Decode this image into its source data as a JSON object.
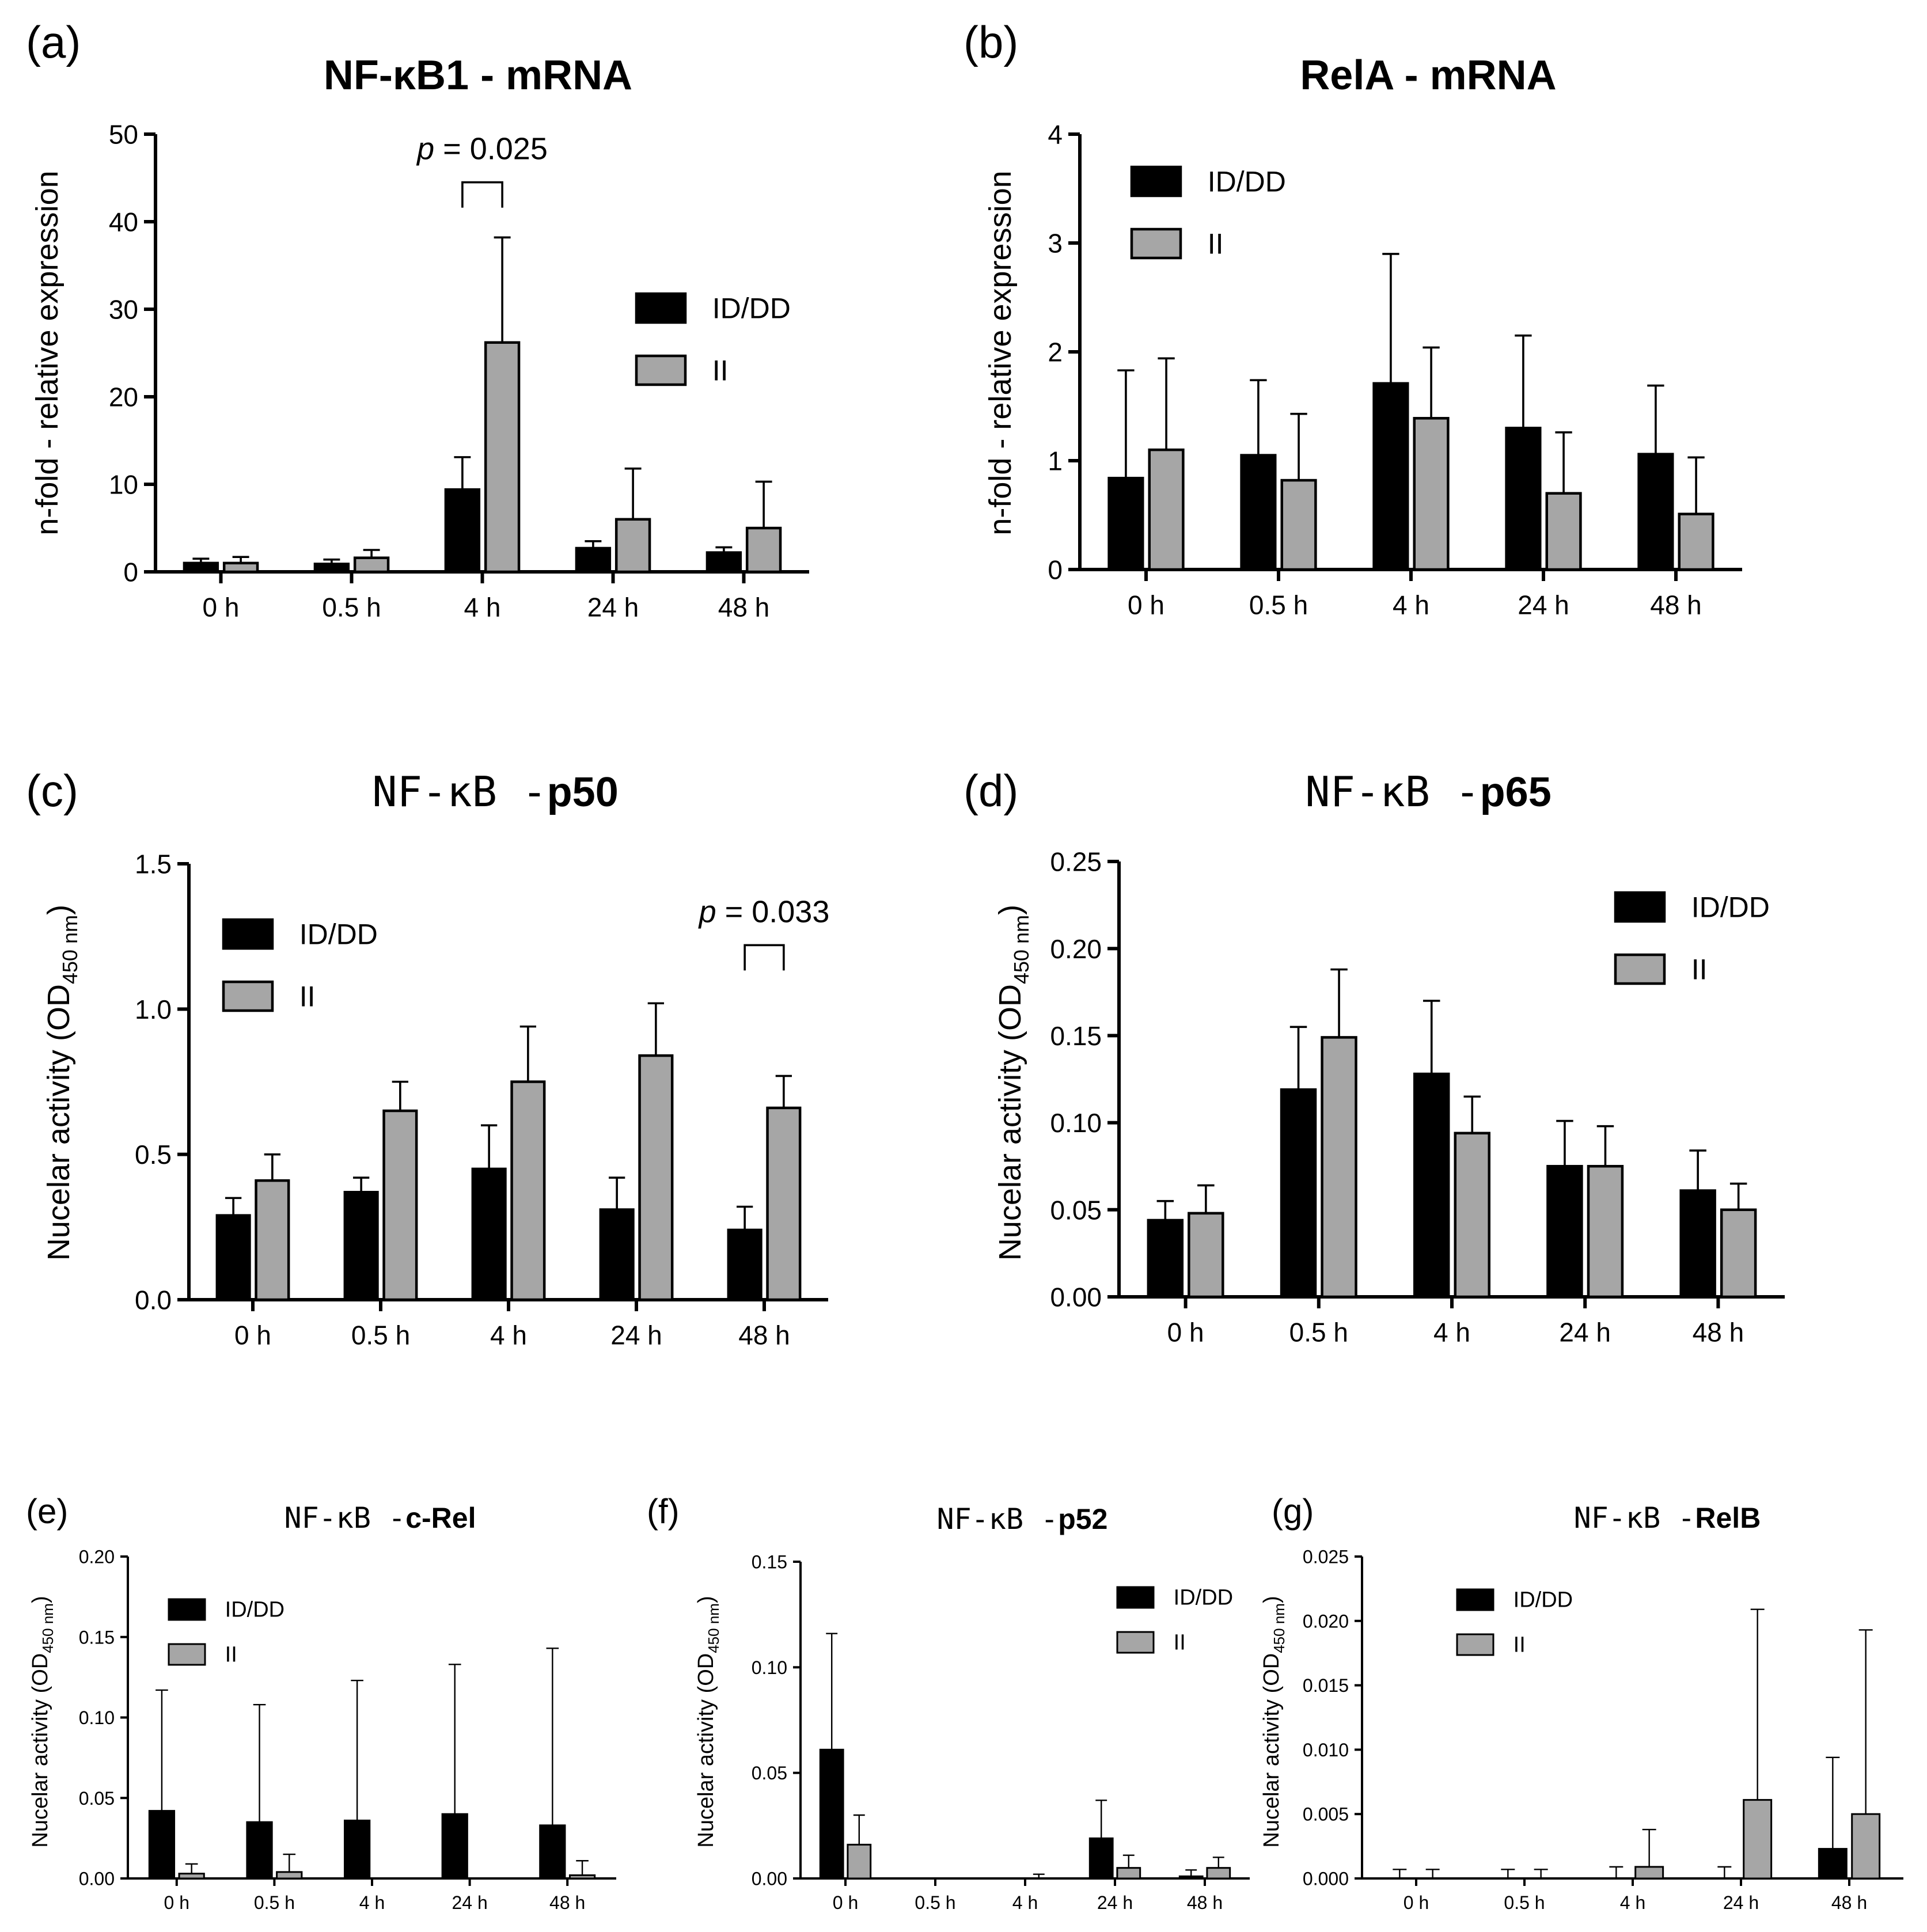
{
  "colors": {
    "iddd": "#000000",
    "ii": "#a6a6a6",
    "axis": "#000000"
  },
  "chart_data": [
    {
      "id": "a",
      "panel_label": "(a)",
      "type": "bar",
      "title": "NF-κB1 - mRNA",
      "title_parts": [
        {
          "text": "NF-κB1 - mRNA",
          "bold": true,
          "mono": false
        }
      ],
      "ylabel": "n-fold - relative expression",
      "ylim": [
        0,
        50
      ],
      "yticks": [
        "0",
        "10",
        "20",
        "30",
        "40",
        "50"
      ],
      "categories": [
        "0 h",
        "0.5 h",
        "4 h",
        "24 h",
        "48 h"
      ],
      "series": [
        {
          "name": "ID/DD",
          "values": [
            1.0,
            0.9,
            9.4,
            2.7,
            2.2
          ],
          "errors": [
            0.5,
            0.5,
            3.7,
            0.8,
            0.6
          ]
        },
        {
          "name": "II",
          "values": [
            1.0,
            1.6,
            26.2,
            6.0,
            5.0
          ],
          "errors": [
            0.7,
            0.9,
            12.0,
            5.8,
            5.3
          ]
        }
      ],
      "legend": "right",
      "annotation": {
        "p_label": "p",
        "p_value": "= 0.025",
        "category_index": 2,
        "y": 44.5
      }
    },
    {
      "id": "b",
      "panel_label": "(b)",
      "type": "bar",
      "title": "RelA - mRNA",
      "title_parts": [
        {
          "text": "RelA - mRNA",
          "bold": true,
          "mono": false
        }
      ],
      "ylabel": "n-fold - relative expression",
      "ylim": [
        0,
        4
      ],
      "yticks": [
        "0",
        "1",
        "2",
        "3",
        "4"
      ],
      "categories": [
        "0 h",
        "0.5 h",
        "4 h",
        "24 h",
        "48 h"
      ],
      "series": [
        {
          "name": "ID/DD",
          "values": [
            0.84,
            1.05,
            1.71,
            1.3,
            1.06
          ],
          "errors": [
            0.99,
            0.69,
            1.19,
            0.85,
            0.63
          ]
        },
        {
          "name": "II",
          "values": [
            1.1,
            0.82,
            1.39,
            0.7,
            0.51
          ],
          "errors": [
            0.84,
            0.61,
            0.65,
            0.56,
            0.52
          ]
        }
      ],
      "legend": "left",
      "annotation": null
    },
    {
      "id": "c",
      "panel_label": "(c)",
      "type": "bar",
      "title": "NF-κB -p50",
      "title_parts": [
        {
          "text": "NF-κB -",
          "bold": false,
          "mono": true
        },
        {
          "text": "p50",
          "bold": true,
          "mono": false
        }
      ],
      "ylabel": "Nucelar activity (OD",
      "ylabel_sub": "450 nm",
      "ylabel_end": ")",
      "ylim": [
        0,
        1.5
      ],
      "yticks": [
        "0.0",
        "0.5",
        "1.0",
        "1.5"
      ],
      "categories": [
        "0 h",
        "0.5 h",
        "4 h",
        "24 h",
        "48 h"
      ],
      "series": [
        {
          "name": "ID/DD",
          "values": [
            0.29,
            0.37,
            0.45,
            0.31,
            0.24
          ],
          "errors": [
            0.06,
            0.05,
            0.15,
            0.11,
            0.08
          ]
        },
        {
          "name": "II",
          "values": [
            0.41,
            0.65,
            0.75,
            0.84,
            0.66
          ],
          "errors": [
            0.09,
            0.1,
            0.19,
            0.18,
            0.11
          ]
        }
      ],
      "legend": "left",
      "annotation": {
        "p_label": "p",
        "p_value": "= 0.033",
        "category_index": 4,
        "y": 1.22
      }
    },
    {
      "id": "d",
      "panel_label": "(d)",
      "type": "bar",
      "title": "NF-κB -p65",
      "title_parts": [
        {
          "text": "NF-κB -",
          "bold": false,
          "mono": true
        },
        {
          "text": "p65",
          "bold": true,
          "mono": false
        }
      ],
      "ylabel": "Nucelar activity (OD",
      "ylabel_sub": "450 nm",
      "ylabel_end": ")",
      "ylim": [
        0,
        0.25
      ],
      "yticks": [
        "0.00",
        "0.05",
        "0.10",
        "0.15",
        "0.20",
        "0.25"
      ],
      "categories": [
        "0 h",
        "0.5 h",
        "4 h",
        "24 h",
        "48 h"
      ],
      "series": [
        {
          "name": "ID/DD",
          "values": [
            0.044,
            0.119,
            0.128,
            0.075,
            0.061
          ],
          "errors": [
            0.011,
            0.036,
            0.042,
            0.026,
            0.023
          ]
        },
        {
          "name": "II",
          "values": [
            0.048,
            0.149,
            0.094,
            0.075,
            0.05
          ],
          "errors": [
            0.016,
            0.039,
            0.021,
            0.023,
            0.015
          ]
        }
      ],
      "legend": "right",
      "annotation": null
    },
    {
      "id": "e",
      "panel_label": "(e)",
      "type": "bar",
      "title": "NF-κB -c-Rel",
      "title_parts": [
        {
          "text": "NF-κB -",
          "bold": false,
          "mono": true
        },
        {
          "text": "c-Rel",
          "bold": true,
          "mono": false
        }
      ],
      "ylabel": "Nucelar activity (OD",
      "ylabel_sub": "450 nm",
      "ylabel_end": ")",
      "ylim": [
        0,
        0.2
      ],
      "yticks": [
        "0.00",
        "0.05",
        "0.10",
        "0.15",
        "0.20"
      ],
      "categories": [
        "0 h",
        "0.5 h",
        "4 h",
        "24 h",
        "48 h"
      ],
      "series": [
        {
          "name": "ID/DD",
          "values": [
            0.042,
            0.035,
            0.036,
            0.04,
            0.033
          ],
          "errors": [
            0.075,
            0.073,
            0.087,
            0.093,
            0.11
          ]
        },
        {
          "name": "II",
          "values": [
            0.003,
            0.004,
            0.0,
            0.0,
            0.002
          ],
          "errors": [
            0.006,
            0.011,
            0.0,
            0.0,
            0.009
          ]
        }
      ],
      "legend": "left",
      "annotation": null
    },
    {
      "id": "f",
      "panel_label": "(f)",
      "type": "bar",
      "title": "NF-κB -p52",
      "title_parts": [
        {
          "text": "NF-κB -",
          "bold": false,
          "mono": true
        },
        {
          "text": "p52",
          "bold": true,
          "mono": false
        }
      ],
      "ylabel": "Nucelar activity (OD",
      "ylabel_sub": "450 nm",
      "ylabel_end": ")",
      "ylim": [
        0,
        0.15
      ],
      "yticks": [
        "0.00",
        "0.05",
        "0.10",
        "0.15"
      ],
      "categories": [
        "0 h",
        "0.5 h",
        "4 h",
        "24 h",
        "48 h"
      ],
      "series": [
        {
          "name": "ID/DD",
          "values": [
            0.061,
            0.0,
            0.0,
            0.019,
            0.001
          ],
          "errors": [
            0.055,
            0.0,
            0.0,
            0.018,
            0.003
          ]
        },
        {
          "name": "II",
          "values": [
            0.016,
            0.0,
            0.0,
            0.005,
            0.005
          ],
          "errors": [
            0.014,
            0.0,
            0.002,
            0.006,
            0.005
          ]
        }
      ],
      "legend": "right",
      "annotation": null
    },
    {
      "id": "g",
      "panel_label": "(g)",
      "type": "bar",
      "title": "NF-κB -RelB",
      "title_parts": [
        {
          "text": "NF-κB -",
          "bold": false,
          "mono": true
        },
        {
          "text": "RelB",
          "bold": true,
          "mono": false
        }
      ],
      "ylabel": "Nucelar activity (OD",
      "ylabel_sub": "450 nm",
      "ylabel_end": ")",
      "ylim": [
        0,
        0.025
      ],
      "yticks": [
        "0.000",
        "0.005",
        "0.010",
        "0.015",
        "0.020",
        "0.025"
      ],
      "categories": [
        "0 h",
        "0.5 h",
        "4 h",
        "24 h",
        "48 h"
      ],
      "series": [
        {
          "name": "ID/DD",
          "values": [
            0.0,
            0.0,
            0.0,
            0.0,
            0.0023
          ],
          "errors": [
            0.0007,
            0.0007,
            0.0009,
            0.0009,
            0.0071
          ]
        },
        {
          "name": "II",
          "values": [
            0.0,
            0.0,
            0.0009,
            0.0061,
            0.005
          ],
          "errors": [
            0.0007,
            0.0007,
            0.0029,
            0.0148,
            0.0143
          ]
        }
      ],
      "legend": "left",
      "annotation": null
    }
  ]
}
